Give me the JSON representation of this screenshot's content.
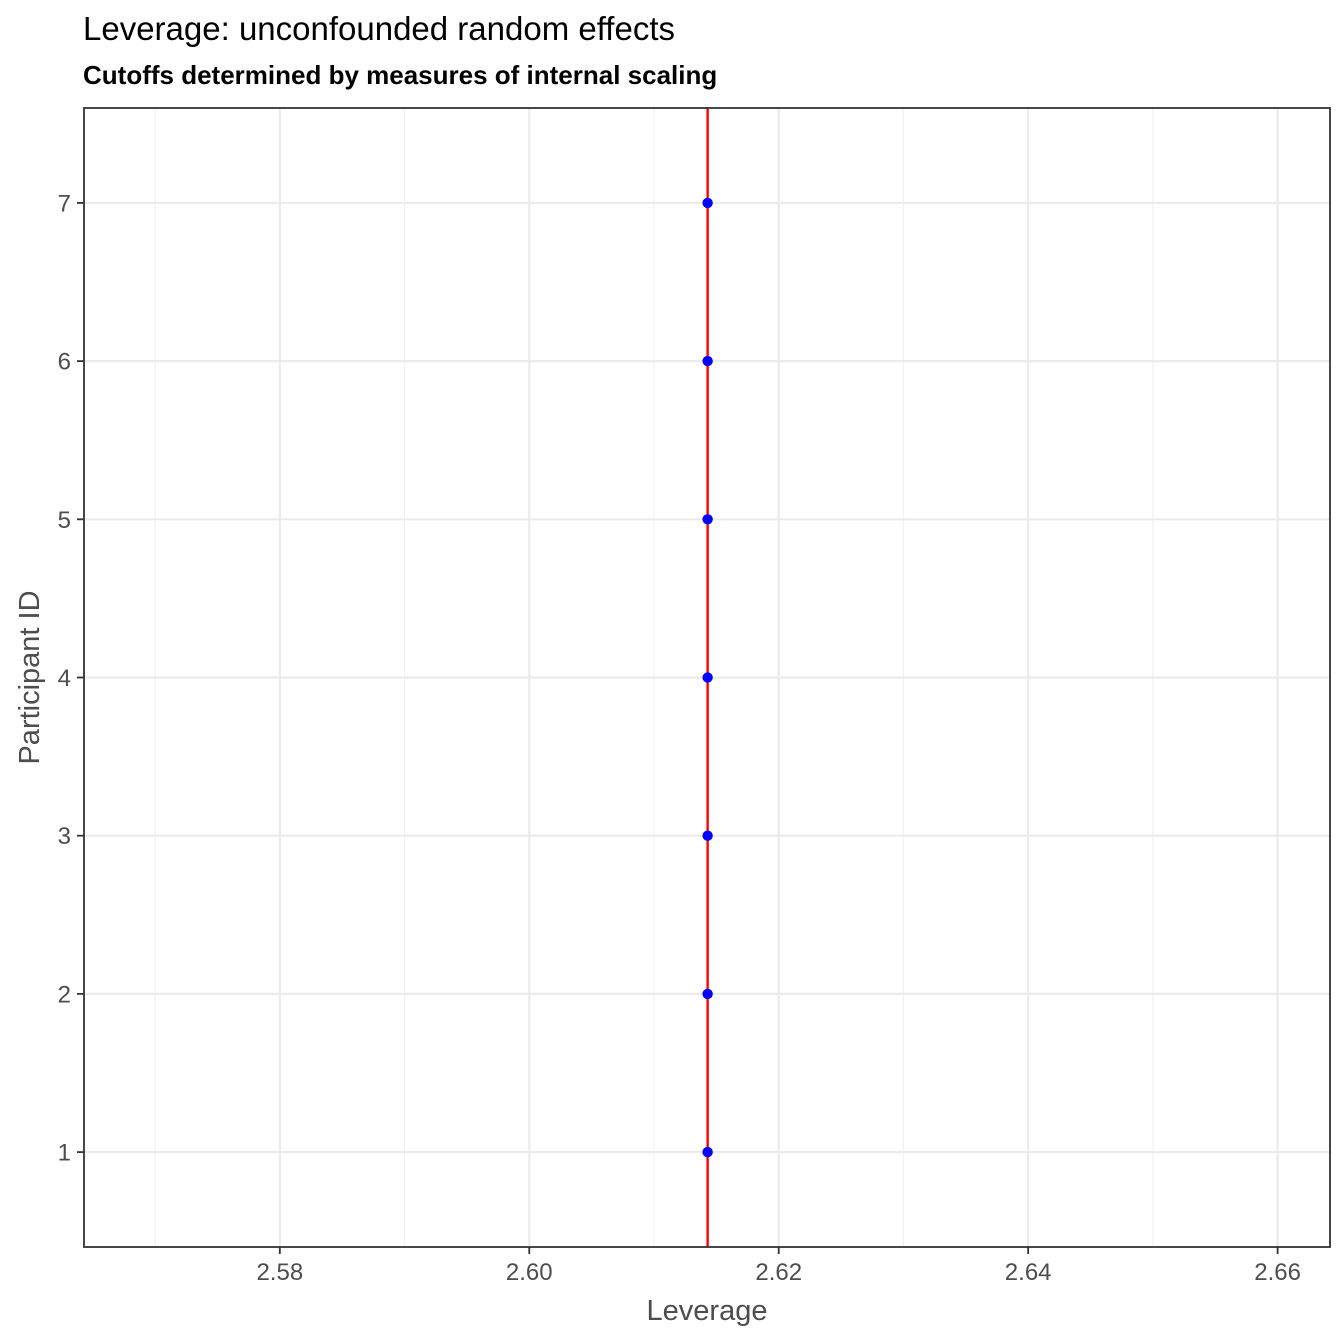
{
  "chart_data": {
    "type": "scatter",
    "title": "Leverage: unconfounded random effects",
    "subtitle": "Cutoffs determined by measures of internal scaling",
    "xlabel": "Leverage",
    "ylabel": "Participant ID",
    "xlim": [
      2.5643,
      2.6642
    ],
    "ylim": [
      0.4,
      7.6
    ],
    "x_ticks": [
      2.58,
      2.6,
      2.62,
      2.64,
      2.66
    ],
    "x_tick_labels": [
      "2.58",
      "2.60",
      "2.62",
      "2.64",
      "2.66"
    ],
    "x_minor_ticks": [
      2.57,
      2.59,
      2.61,
      2.63,
      2.65
    ],
    "y_ticks": [
      1,
      2,
      3,
      4,
      5,
      6,
      7
    ],
    "y_tick_labels": [
      "1",
      "2",
      "3",
      "4",
      "5",
      "6",
      "7"
    ],
    "grid": true,
    "legend": "none",
    "points": [
      {
        "x": 2.6143,
        "y": 1
      },
      {
        "x": 2.6143,
        "y": 2
      },
      {
        "x": 2.6143,
        "y": 3
      },
      {
        "x": 2.6143,
        "y": 4
      },
      {
        "x": 2.6143,
        "y": 5
      },
      {
        "x": 2.6143,
        "y": 6
      },
      {
        "x": 2.6143,
        "y": 7
      }
    ],
    "cutoff_line_x": 2.6143,
    "colors": {
      "points": "#0000ff",
      "cutoff": "#ff0000",
      "major_grid": "#ebebeb",
      "minor_grid": "#f2f2f2",
      "panel_border": "#333333"
    }
  }
}
